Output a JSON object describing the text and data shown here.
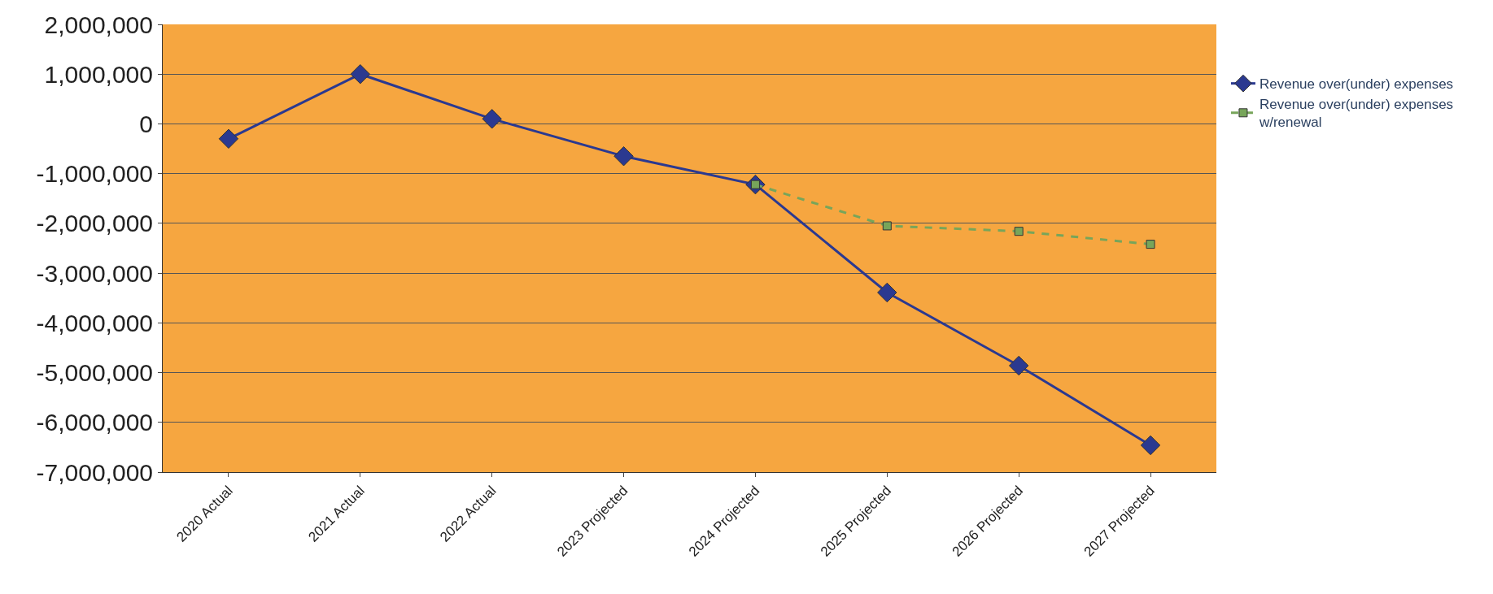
{
  "chart_data": {
    "type": "line",
    "categories": [
      "2020 Actual",
      "2021 Actual",
      "2022 Actual",
      "2023 Projected",
      "2024 Projected",
      "2025 Projected",
      "2026 Projected",
      "2027 Projected"
    ],
    "series": [
      {
        "name": "Revenue over(under) expenses",
        "color": "#2b3990",
        "marker": "diamond",
        "line_style": "solid",
        "values": [
          -300000,
          1000000,
          100000,
          -650000,
          -1220000,
          -3390000,
          -4860000,
          -6460000
        ]
      },
      {
        "name": "Revenue over(under) expenses w/renewal",
        "color": "#77a55a",
        "marker": "square",
        "line_style": "dashed",
        "values": [
          null,
          null,
          null,
          null,
          -1220000,
          -2050000,
          -2160000,
          -2420000
        ]
      }
    ],
    "ylim": [
      -7000000,
      2000000
    ],
    "yticks": [
      {
        "value": 2000000,
        "label": "2,000,000"
      },
      {
        "value": 1000000,
        "label": "1,000,000"
      },
      0,
      {
        "value": -1000000,
        "label": "-1,000,000"
      },
      {
        "value": -2000000,
        "label": "-2,000,000"
      },
      {
        "value": -3000000,
        "label": "-3,000,000"
      },
      {
        "value": -4000000,
        "label": "-4,000,000"
      },
      {
        "value": -5000000,
        "label": "-5,000,000"
      },
      {
        "value": -6000000,
        "label": "-6,000,000"
      },
      {
        "value": -7000000,
        "label": "-7,000,000"
      }
    ],
    "grid": "y",
    "legend": "right"
  }
}
